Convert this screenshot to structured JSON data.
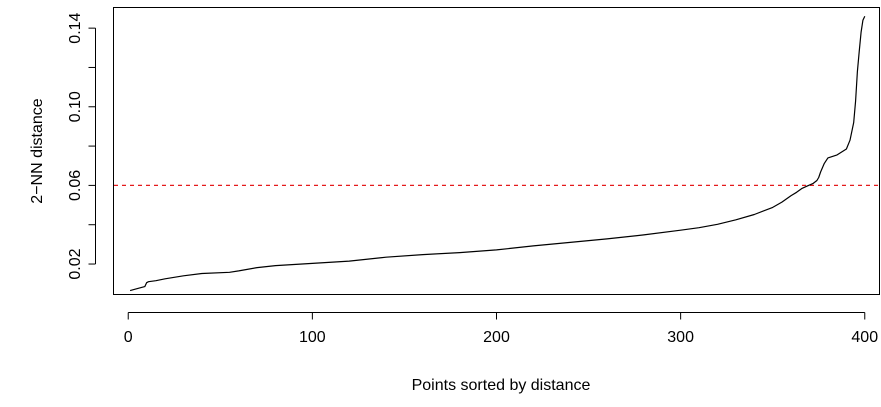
{
  "chart_data": {
    "type": "line",
    "title": "",
    "xlabel": "Points sorted by distance",
    "ylabel": "2−NN distance",
    "xlim": [
      -8,
      408
    ],
    "ylim": [
      0.0045,
      0.1505
    ],
    "x_ticks": [
      0,
      100,
      200,
      300,
      400
    ],
    "x_tick_labels": [
      "0",
      "100",
      "200",
      "300",
      "400"
    ],
    "y_ticks": [
      0.02,
      0.04,
      0.06,
      0.08,
      0.1,
      0.12,
      0.14
    ],
    "y_tick_labels": [
      "0.02",
      "",
      "0.06",
      "",
      "0.10",
      "",
      "0.14"
    ],
    "grid": false,
    "legend": "none",
    "series": [
      {
        "color": "#000000",
        "style": "solid",
        "x": [
          1,
          5,
          9,
          10,
          11,
          15,
          20,
          30,
          40,
          55,
          60,
          70,
          80,
          100,
          120,
          140,
          160,
          180,
          200,
          220,
          240,
          260,
          280,
          300,
          310,
          320,
          330,
          340,
          350,
          355,
          360,
          363,
          366,
          369,
          372,
          374,
          375,
          376,
          378,
          380,
          385,
          390,
          392,
          394,
          395,
          396,
          397,
          398,
          399,
          400
        ],
        "y": [
          0.0065,
          0.0075,
          0.0085,
          0.0105,
          0.011,
          0.0115,
          0.0125,
          0.014,
          0.0152,
          0.0158,
          0.0165,
          0.0182,
          0.0192,
          0.0203,
          0.0215,
          0.0235,
          0.0248,
          0.0258,
          0.0272,
          0.0292,
          0.031,
          0.0328,
          0.0348,
          0.0372,
          0.0385,
          0.0402,
          0.0425,
          0.0452,
          0.0488,
          0.0515,
          0.0548,
          0.0565,
          0.0585,
          0.0598,
          0.061,
          0.0625,
          0.064,
          0.0668,
          0.0712,
          0.074,
          0.0755,
          0.0785,
          0.083,
          0.092,
          0.103,
          0.118,
          0.128,
          0.138,
          0.144,
          0.146
        ]
      }
    ],
    "reference_lines": [
      {
        "orientation": "horizontal",
        "y": 0.06,
        "color": "#e41a1c",
        "style": "dashed"
      }
    ]
  }
}
